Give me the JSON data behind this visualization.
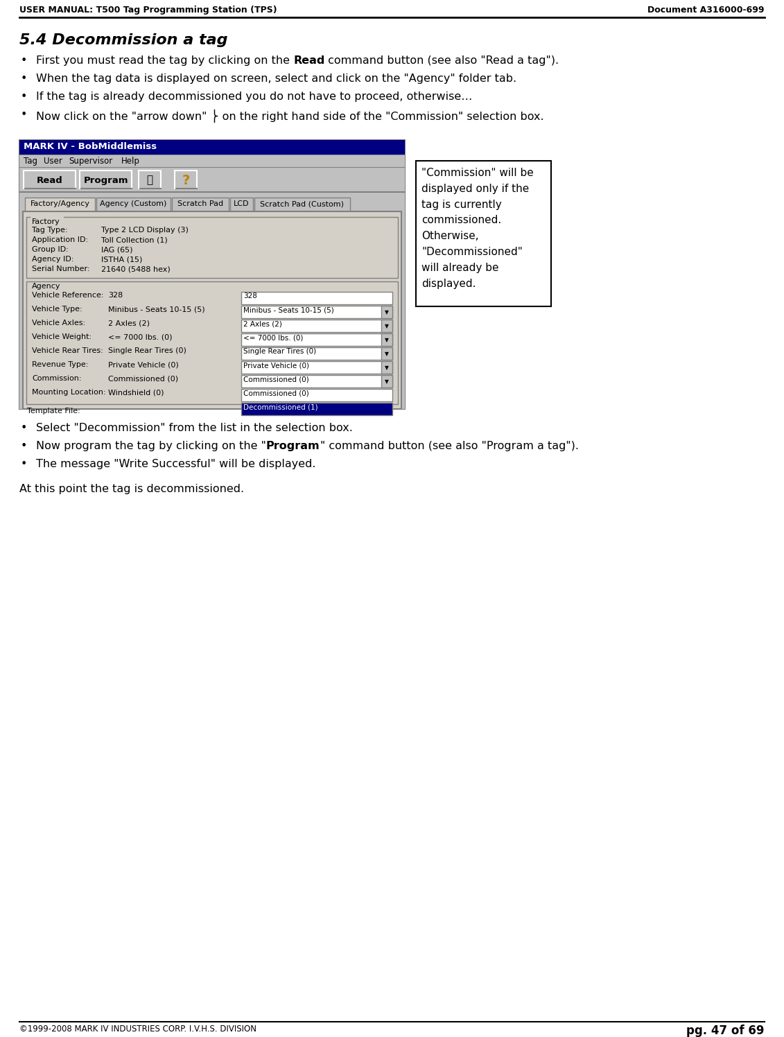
{
  "page_title_left": "USER MANUAL: T500 Tag Programming Station (TPS)",
  "page_title_right": "Document A316000-699",
  "section_title": "5.4 Decommission a tag",
  "bullet_points_before": [
    [
      [
        "First you must read the tag by clicking on the ",
        false
      ],
      [
        "Read",
        true
      ],
      [
        " command button (see also \"Read a tag\").",
        false
      ]
    ],
    [
      [
        "When the tag data is displayed on screen, select and click on the \"Agency\" folder tab.",
        false
      ]
    ],
    [
      [
        "If the tag is already decommissioned you do not have to proceed, otherwise…",
        false
      ]
    ],
    [
      [
        "Now click on the \"arrow down\" ⎬ on the right hand side of the \"Commission\" selection box.",
        false
      ]
    ]
  ],
  "bullet_points_after": [
    [
      [
        "Select \"Decommission\" from the list in the selection box.",
        false
      ]
    ],
    [
      [
        "Now program the tag by clicking on the \"",
        false
      ],
      [
        "Program",
        true
      ],
      [
        "\" command button (see also \"Program a tag\").",
        false
      ]
    ],
    [
      [
        "The message \"Write Successful\" will be displayed.",
        false
      ]
    ]
  ],
  "closing_text": "At this point the tag is decommissioned.",
  "note_box_text": "\"Commission\" will be\ndisplayed only if the\ntag is currently\ncommissioned.\nOtherwise,\n\"Decommissioned\"\nwill already be\ndisplayed.",
  "footer_left": "©1999-2008 MARK IV INDUSTRIES CORP. I.V.H.S. DIVISION",
  "footer_right": "pg. 47 of 69",
  "app_title": "MARK IV - BobMiddlemiss",
  "menu_items": [
    "Tag",
    "User",
    "Supervisor",
    "Help"
  ],
  "toolbar_buttons": [
    "Read",
    "Program"
  ],
  "tabs": [
    "Factory/Agency",
    "Agency (Custom)",
    "Scratch Pad",
    "LCD",
    "Scratch Pad (Custom)"
  ],
  "factory_fields": [
    [
      "Tag Type:",
      "Type 2 LCD Display (3)"
    ],
    [
      "Application ID:",
      "Toll Collection (1)"
    ],
    [
      "Group ID:",
      "IAG (65)"
    ],
    [
      "Agency ID:",
      "ISTHA (15)"
    ],
    [
      "Serial Number:",
      "21640 (5488 hex)"
    ]
  ],
  "agency_rows": [
    {
      "label": "Vehicle Reference:",
      "left_val": "328",
      "dropdown": "328",
      "has_arrow": false
    },
    {
      "label": "Vehicle Type:",
      "left_val": "Minibus - Seats 10-15 (5)",
      "dropdown": "Minibus - Seats 10-15 (5)",
      "has_arrow": true
    },
    {
      "label": "Vehicle Axles:",
      "left_val": "2 Axles (2)",
      "dropdown": "2 Axles (2)",
      "has_arrow": true
    },
    {
      "label": "Vehicle Weight:",
      "left_val": "<= 7000 lbs. (0)",
      "dropdown": "<= 7000 lbs. (0)",
      "has_arrow": true
    },
    {
      "label": "Vehicle Rear Tires:",
      "left_val": "Single Rear Tires (0)",
      "dropdown": "Single Rear Tires (0)",
      "has_arrow": true
    },
    {
      "label": "Revenue Type:",
      "left_val": "Private Vehicle (0)",
      "dropdown": "Private Vehicle (0)",
      "has_arrow": true
    },
    {
      "label": "Commission:",
      "left_val": "Commissioned (0)",
      "dropdown": "Commissioned (0)",
      "has_arrow": true
    },
    {
      "label": "Mounting Location:",
      "left_val": "Windshield (0)",
      "dropdown": "Commissioned (0)",
      "has_arrow": false
    },
    {
      "label": "",
      "left_val": "",
      "dropdown": "Decommissioned (1)",
      "has_arrow": false,
      "highlighted": true
    }
  ],
  "template_label": "Template File:",
  "bg_color": "#ffffff",
  "app_title_bg": "#000080",
  "app_title_fg": "#ffffff",
  "toolbar_bg": "#c0c0c0",
  "inner_bg": "#d4d0c8",
  "dropdown_bg": "#ffffff",
  "dropdown_highlight_bg": "#000080",
  "dropdown_highlight_fg": "#ffffff"
}
